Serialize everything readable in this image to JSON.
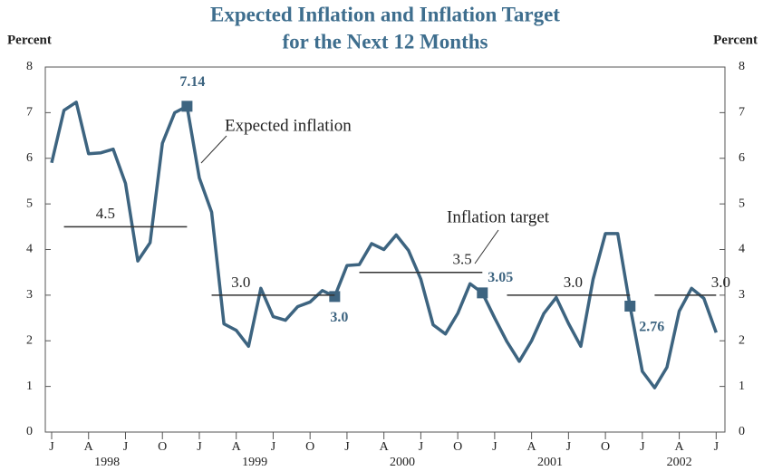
{
  "chart_data": {
    "type": "line",
    "title_lines": [
      "Expected Inflation and Inflation Target",
      "for the Next 12 Months"
    ],
    "ylabel": "Percent",
    "y2label": "Percent",
    "categories": [
      "J",
      null,
      null,
      "A",
      null,
      null,
      "J",
      null,
      null,
      "O",
      null,
      null,
      "J",
      null,
      null,
      "A",
      null,
      null,
      "J",
      null,
      null,
      "O",
      null,
      null,
      "J",
      null,
      null,
      "A",
      null,
      null,
      "J",
      null,
      null,
      "O",
      null,
      null,
      "J",
      null,
      null,
      "A",
      null,
      null,
      "J",
      null,
      null,
      "O",
      null,
      null,
      "J",
      null,
      null,
      "A",
      null,
      null,
      "J"
    ],
    "years": [
      "1998",
      "1999",
      "2000",
      "2001",
      "2002"
    ],
    "ylim": [
      0,
      8
    ],
    "yticks": [
      0,
      1,
      2,
      3,
      4,
      5,
      6,
      7,
      8
    ],
    "y2lim": [
      0,
      8
    ],
    "y2ticks": [
      0,
      1,
      2,
      3,
      4,
      5,
      6,
      7,
      8
    ],
    "series": [
      {
        "name": "Expected inflation",
        "color": "#3d6480",
        "values": [
          5.9,
          7.05,
          7.23,
          6.1,
          6.12,
          6.2,
          5.45,
          3.75,
          4.15,
          6.33,
          7.0,
          7.14,
          5.57,
          4.82,
          2.37,
          2.23,
          1.88,
          3.15,
          2.53,
          2.45,
          2.75,
          2.85,
          3.1,
          2.97,
          3.65,
          3.67,
          4.13,
          4.0,
          4.32,
          3.98,
          3.35,
          2.35,
          2.15,
          2.6,
          3.25,
          3.05,
          2.5,
          1.98,
          1.55,
          2.0,
          2.6,
          2.95,
          2.38,
          1.88,
          3.35,
          4.35,
          4.35,
          2.76,
          1.33,
          0.97,
          1.42,
          2.65,
          3.15,
          2.93,
          2.18
        ],
        "value_labels": [
          null,
          null,
          null,
          null,
          null,
          null,
          null,
          null,
          null,
          null,
          null,
          "7.14",
          null,
          null,
          null,
          null,
          null,
          null,
          null,
          null,
          null,
          null,
          null,
          "3.0",
          null,
          null,
          null,
          null,
          null,
          null,
          null,
          null,
          null,
          null,
          null,
          "3.05",
          null,
          null,
          null,
          null,
          null,
          null,
          null,
          null,
          null,
          null,
          null,
          "2.76",
          null,
          null,
          null,
          null,
          null,
          null,
          null
        ]
      },
      {
        "name": "Inflation target",
        "color": "#333333",
        "values": [
          null,
          4.5,
          4.5,
          4.5,
          4.5,
          4.5,
          4.5,
          4.5,
          4.5,
          4.5,
          4.5,
          4.5,
          null,
          3.0,
          3.0,
          3.0,
          3.0,
          3.0,
          3.0,
          3.0,
          3.0,
          3.0,
          3.0,
          3.0,
          null,
          3.5,
          3.5,
          3.5,
          3.5,
          3.5,
          3.5,
          3.5,
          3.5,
          3.5,
          3.5,
          3.5,
          null,
          3.0,
          3.0,
          3.0,
          3.0,
          3.0,
          3.0,
          3.0,
          3.0,
          3.0,
          3.0,
          3.0,
          null,
          3.0,
          3.0,
          3.0,
          3.0,
          3.0,
          3.0
        ],
        "value_labels": [
          null,
          null,
          null,
          null,
          "4.5",
          null,
          null,
          null,
          null,
          null,
          null,
          null,
          null,
          null,
          null,
          "3.0",
          null,
          null,
          null,
          null,
          null,
          null,
          null,
          null,
          null,
          null,
          null,
          null,
          null,
          null,
          null,
          null,
          null,
          "3.5",
          null,
          null,
          null,
          null,
          null,
          null,
          null,
          null,
          "3.0",
          null,
          null,
          null,
          null,
          null,
          null,
          null,
          null,
          null,
          null,
          null,
          "3.0"
        ]
      }
    ]
  }
}
